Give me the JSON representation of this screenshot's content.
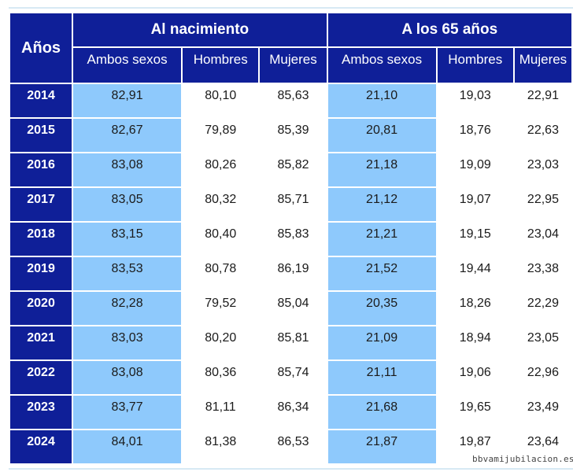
{
  "table": {
    "years_header": "Años",
    "groups": [
      {
        "label": "Al nacimiento",
        "columns": [
          "Ambos sexos",
          "Hombres",
          "Mujeres"
        ]
      },
      {
        "label": "A los 65 años",
        "columns": [
          "Ambos sexos",
          "Hombres",
          "Mujeres"
        ]
      }
    ],
    "rows": [
      {
        "year": "2014",
        "values": [
          "82,91",
          "80,10",
          "85,63",
          "21,10",
          "19,03",
          "22,91"
        ]
      },
      {
        "year": "2015",
        "values": [
          "82,67",
          "79,89",
          "85,39",
          "20,81",
          "18,76",
          "22,63"
        ]
      },
      {
        "year": "2016",
        "values": [
          "83,08",
          "80,26",
          "85,82",
          "21,18",
          "19,09",
          "23,03"
        ]
      },
      {
        "year": "2017",
        "values": [
          "83,05",
          "80,32",
          "85,71",
          "21,12",
          "19,07",
          "22,95"
        ]
      },
      {
        "year": "2018",
        "values": [
          "83,15",
          "80,40",
          "85,83",
          "21,21",
          "19,15",
          "23,04"
        ]
      },
      {
        "year": "2019",
        "values": [
          "83,53",
          "80,78",
          "86,19",
          "21,52",
          "19,44",
          "23,38"
        ]
      },
      {
        "year": "2020",
        "values": [
          "82,28",
          "79,52",
          "85,04",
          "20,35",
          "18,26",
          "22,29"
        ]
      },
      {
        "year": "2021",
        "values": [
          "83,03",
          "80,20",
          "85,81",
          "21,09",
          "18,94",
          "23,05"
        ]
      },
      {
        "year": "2022",
        "values": [
          "83,08",
          "80,36",
          "85,74",
          "21,11",
          "19,06",
          "22,96"
        ]
      },
      {
        "year": "2023",
        "values": [
          "83,77",
          "81,11",
          "86,34",
          "21,68",
          "19,65",
          "23,49"
        ]
      },
      {
        "year": "2024",
        "values": [
          "84,01",
          "81,38",
          "86,53",
          "21,87",
          "19,87",
          "23,64"
        ]
      }
    ]
  },
  "watermark": "bbvamijubilacion.es",
  "colors": {
    "header_navy": "#0f1f98",
    "shaded_column": "#8ec9fc",
    "divider_light": "#d7e9f4"
  }
}
